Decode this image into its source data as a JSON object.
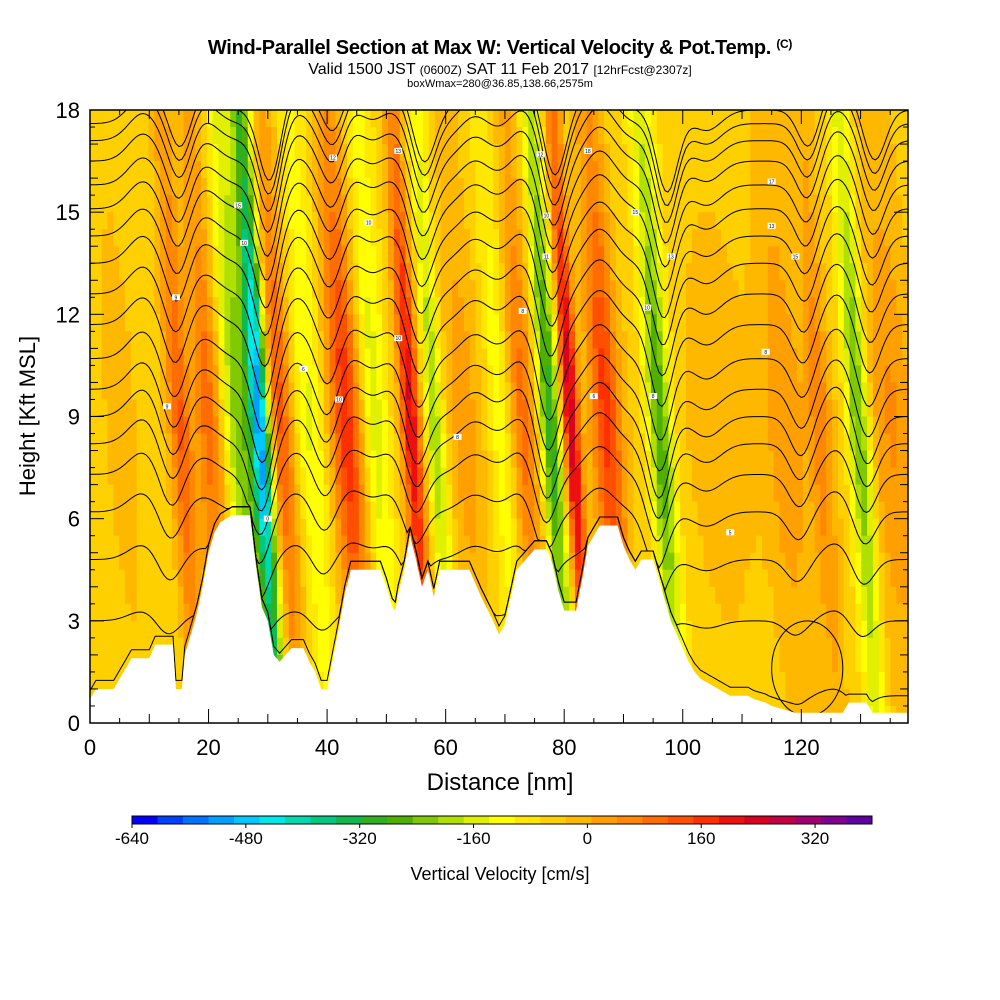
{
  "header": {
    "title_main": "Wind-Parallel Section at Max W: Vertical Velocity & Pot.Temp.",
    "title_copyright": "(C)",
    "valid_prefix": "Valid 1500 JST",
    "valid_utc": "(0600Z)",
    "valid_date": "SAT 11 Feb 2017",
    "forecast": "[12hrFcst@2307z]",
    "box_info": "boxWmax=280@36.85,138.66,2575m"
  },
  "chart_data": {
    "type": "heatmap",
    "title": "Wind-Parallel Section at Max W: Vertical Velocity & Pot.Temp.",
    "xlabel": "Distance [nm]",
    "ylabel": "Height [Kft MSL]",
    "xlim": [
      0,
      138
    ],
    "ylim": [
      0,
      18
    ],
    "x_ticks": [
      "0",
      "20",
      "40",
      "60",
      "80",
      "100",
      "120"
    ],
    "y_ticks": [
      "0",
      "3",
      "6",
      "9",
      "12",
      "15",
      "18"
    ],
    "colorbar": {
      "label": "Vertical Velocity [cm/s]",
      "min": -640,
      "max": 400,
      "step": 40,
      "tick_labels": [
        "-640",
        "-480",
        "-320",
        "-160",
        "0",
        "160",
        "320"
      ],
      "colors": [
        "#0000ff",
        "#0040ff",
        "#0074ff",
        "#00a0ff",
        "#00c8ff",
        "#00e8e8",
        "#00d8b0",
        "#00c880",
        "#10b850",
        "#30b020",
        "#50b000",
        "#80c800",
        "#b0e000",
        "#e0f000",
        "#ffff00",
        "#ffe800",
        "#ffd000",
        "#ffb800",
        "#ffa000",
        "#ff8800",
        "#ff6c00",
        "#ff5000",
        "#ff3000",
        "#ee1010",
        "#d80020",
        "#c00040",
        "#a00070",
        "#800090",
        "#6000a0"
      ]
    },
    "velocity_bands": [
      {
        "x": 0,
        "w": 11,
        "v": 0
      },
      {
        "x": 4,
        "w": 2.5,
        "v": 40
      },
      {
        "x": 14,
        "w": 1.8,
        "v": 180
      },
      {
        "x": 19,
        "w": 2.5,
        "v": 160
      },
      {
        "x": 24,
        "w": 2.8,
        "v": -220
      },
      {
        "x": 27.5,
        "w": 1.6,
        "v": -500
      },
      {
        "x": 31,
        "w": 2.0,
        "v": 190
      },
      {
        "x": 36,
        "w": 2.5,
        "v": -110
      },
      {
        "x": 42,
        "w": 2.6,
        "v": 240
      },
      {
        "x": 47,
        "w": 2.2,
        "v": -130
      },
      {
        "x": 53,
        "w": 1.6,
        "v": 300
      },
      {
        "x": 57,
        "w": 1.6,
        "v": -180
      },
      {
        "x": 62,
        "w": 3.0,
        "v": 80
      },
      {
        "x": 68,
        "w": 2.0,
        "v": -90
      },
      {
        "x": 72,
        "w": 2.2,
        "v": 150
      },
      {
        "x": 76.5,
        "w": 1.7,
        "v": -300
      },
      {
        "x": 80,
        "w": 1.4,
        "v": 340
      },
      {
        "x": 86,
        "w": 2.5,
        "v": 230
      },
      {
        "x": 95,
        "w": 2.0,
        "v": -260
      },
      {
        "x": 105,
        "w": 6,
        "v": 40
      },
      {
        "x": 116,
        "w": 3.5,
        "v": 90
      },
      {
        "x": 122,
        "w": 2.0,
        "v": 120
      },
      {
        "x": 128.5,
        "w": 1.8,
        "v": -240
      },
      {
        "x": 134,
        "w": 4.0,
        "v": 100
      }
    ],
    "terrain": [
      [
        0,
        0.7
      ],
      [
        1,
        1.0
      ],
      [
        4,
        1.0
      ],
      [
        5,
        1.3
      ],
      [
        6,
        1.6
      ],
      [
        7,
        1.9
      ],
      [
        10,
        1.9
      ],
      [
        11,
        2.3
      ],
      [
        14,
        2.3
      ],
      [
        14.5,
        1.0
      ],
      [
        15.5,
        1.0
      ],
      [
        16,
        2.0
      ],
      [
        17,
        2.6
      ],
      [
        18,
        3.2
      ],
      [
        19,
        4.0
      ],
      [
        20,
        5.0
      ],
      [
        21,
        5.6
      ],
      [
        22,
        5.9
      ],
      [
        24,
        6.1
      ],
      [
        27,
        6.1
      ],
      [
        28,
        4.6
      ],
      [
        29,
        3.4
      ],
      [
        30,
        3.0
      ],
      [
        31,
        2.0
      ],
      [
        32,
        1.8
      ],
      [
        33,
        2.0
      ],
      [
        34,
        2.2
      ],
      [
        36,
        2.2
      ],
      [
        37,
        1.8
      ],
      [
        38,
        1.5
      ],
      [
        39,
        1.0
      ],
      [
        40,
        1.0
      ],
      [
        41,
        1.9
      ],
      [
        42,
        2.8
      ],
      [
        43,
        3.8
      ],
      [
        44,
        4.5
      ],
      [
        49,
        4.5
      ],
      [
        50,
        4.0
      ],
      [
        51,
        3.4
      ],
      [
        51.5,
        3.3
      ],
      [
        52,
        3.8
      ],
      [
        53,
        4.5
      ],
      [
        54,
        5.5
      ],
      [
        55,
        4.8
      ],
      [
        56,
        4.0
      ],
      [
        57,
        4.5
      ],
      [
        58,
        3.7
      ],
      [
        59,
        4.5
      ],
      [
        64,
        4.5
      ],
      [
        66,
        3.7
      ],
      [
        68,
        3.0
      ],
      [
        69,
        2.6
      ],
      [
        70,
        2.9
      ],
      [
        71,
        3.7
      ],
      [
        72,
        4.5
      ],
      [
        74,
        4.9
      ],
      [
        75,
        5.1
      ],
      [
        77,
        5.1
      ],
      [
        78,
        4.7
      ],
      [
        79,
        3.9
      ],
      [
        80,
        3.3
      ],
      [
        82,
        3.3
      ],
      [
        83,
        4.2
      ],
      [
        84,
        5.2
      ],
      [
        86,
        5.8
      ],
      [
        89,
        5.8
      ],
      [
        90,
        5.2
      ],
      [
        91,
        4.8
      ],
      [
        92,
        4.5
      ],
      [
        93,
        4.8
      ],
      [
        95,
        4.8
      ],
      [
        96,
        4.2
      ],
      [
        97,
        3.6
      ],
      [
        98,
        3.0
      ],
      [
        99,
        2.6
      ],
      [
        100,
        2.2
      ],
      [
        101,
        1.8
      ],
      [
        102,
        1.5
      ],
      [
        103,
        1.3
      ],
      [
        105,
        1.1
      ],
      [
        107,
        0.9
      ],
      [
        108,
        0.8
      ],
      [
        111,
        0.8
      ],
      [
        112,
        0.7
      ],
      [
        114,
        0.6
      ],
      [
        115,
        0.5
      ],
      [
        117,
        0.4
      ],
      [
        119,
        0.3
      ],
      [
        127,
        0.3
      ],
      [
        128,
        0.6
      ],
      [
        131,
        0.6
      ],
      [
        132,
        0.3
      ],
      [
        138,
        0.3
      ]
    ],
    "theta_levels": [
      0.8,
      3.0,
      4.8,
      6.2,
      7.3,
      8.2,
      9.0,
      9.8,
      10.7,
      11.7,
      12.6,
      13.5,
      14.3,
      15.1,
      15.8,
      16.5,
      17.1,
      17.6,
      18.0
    ],
    "wave_crests": [
      {
        "x": 9,
        "a": 0.8
      },
      {
        "x": 19,
        "a": 0.6
      },
      {
        "x": 35,
        "a": 0.8
      },
      {
        "x": 44,
        "a": 0.9
      },
      {
        "x": 51,
        "a": 0.8
      },
      {
        "x": 65,
        "a": 0.7
      },
      {
        "x": 73,
        "a": 0.9
      },
      {
        "x": 86,
        "a": 1.0
      },
      {
        "x": 104,
        "a": -0.6
      },
      {
        "x": 126,
        "a": 0.9
      }
    ],
    "wave_troughs": [
      {
        "x": 14,
        "a": 1.3
      },
      {
        "x": 29,
        "a": 2.2
      },
      {
        "x": 40,
        "a": 1.1
      },
      {
        "x": 55,
        "a": 1.6
      },
      {
        "x": 77,
        "a": 2.0
      },
      {
        "x": 96,
        "a": 2.4
      },
      {
        "x": 120,
        "a": 1.2
      },
      {
        "x": 131,
        "a": 1.5
      }
    ],
    "contour_labels": [
      {
        "x": 14.5,
        "y": 12.5,
        "text": "9"
      },
      {
        "x": 13,
        "y": 9.3,
        "text": "9"
      },
      {
        "x": 25,
        "y": 15.2,
        "text": "15"
      },
      {
        "x": 26,
        "y": 14.1,
        "text": "10"
      },
      {
        "x": 30,
        "y": 6.0,
        "text": "0"
      },
      {
        "x": 36,
        "y": 10.4,
        "text": "6"
      },
      {
        "x": 42,
        "y": 9.5,
        "text": "10"
      },
      {
        "x": 41,
        "y": 16.6,
        "text": "12"
      },
      {
        "x": 47,
        "y": 14.7,
        "text": "10"
      },
      {
        "x": 52,
        "y": 11.3,
        "text": "10"
      },
      {
        "x": 52,
        "y": 16.8,
        "text": "13"
      },
      {
        "x": 62,
        "y": 8.4,
        "text": "8"
      },
      {
        "x": 73,
        "y": 12.1,
        "text": "8"
      },
      {
        "x": 76,
        "y": 16.7,
        "text": "12"
      },
      {
        "x": 77,
        "y": 14.9,
        "text": "10"
      },
      {
        "x": 77,
        "y": 13.7,
        "text": "11"
      },
      {
        "x": 84,
        "y": 16.8,
        "text": "18"
      },
      {
        "x": 85,
        "y": 9.6,
        "text": "6"
      },
      {
        "x": 92,
        "y": 15.0,
        "text": "15"
      },
      {
        "x": 94,
        "y": 12.2,
        "text": "10"
      },
      {
        "x": 95,
        "y": 9.6,
        "text": "8"
      },
      {
        "x": 98,
        "y": 13.7,
        "text": "13"
      },
      {
        "x": 108,
        "y": 5.6,
        "text": "5"
      },
      {
        "x": 114,
        "y": 10.9,
        "text": "8"
      },
      {
        "x": 115,
        "y": 15.9,
        "text": "17"
      },
      {
        "x": 115,
        "y": 14.6,
        "text": "13"
      },
      {
        "x": 119,
        "y": 13.7,
        "text": "15"
      }
    ]
  }
}
